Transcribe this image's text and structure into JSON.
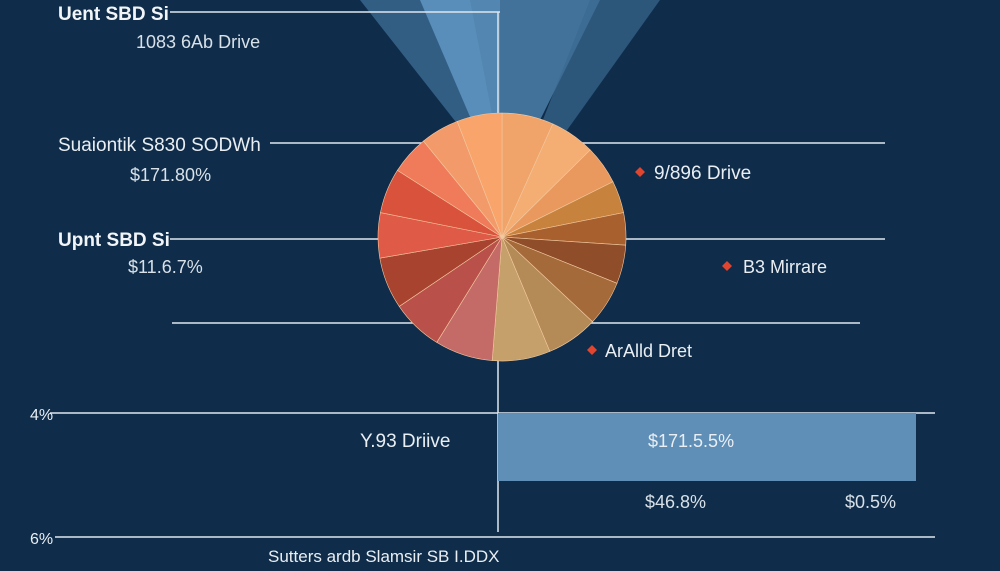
{
  "chart_data": [
    {
      "type": "pie",
      "title": "",
      "slices": [
        {
          "name": "slice-1",
          "value": 8,
          "color": "#f0a46a"
        },
        {
          "name": "slice-2",
          "value": 7,
          "color": "#f4ad72"
        },
        {
          "name": "slice-3",
          "value": 6,
          "color": "#e9995e"
        },
        {
          "name": "slice-4",
          "value": 5,
          "color": "#c7833d"
        },
        {
          "name": "slice-5",
          "value": 5,
          "color": "#a8602f"
        },
        {
          "name": "slice-6",
          "value": 6,
          "color": "#8f4d2a"
        },
        {
          "name": "slice-7",
          "value": 7,
          "color": "#a46a3a"
        },
        {
          "name": "slice-8",
          "value": 8,
          "color": "#b48a56"
        },
        {
          "name": "slice-9",
          "value": 9,
          "color": "#c5a06a"
        },
        {
          "name": "slice-10",
          "value": 9,
          "color": "#c56b67"
        },
        {
          "name": "slice-11",
          "value": 8,
          "color": "#b9514a"
        },
        {
          "name": "slice-12",
          "value": 8,
          "color": "#a8432f"
        },
        {
          "name": "slice-13",
          "value": 7,
          "color": "#e05a48"
        },
        {
          "name": "slice-14",
          "value": 7,
          "color": "#d9523c"
        },
        {
          "name": "slice-15",
          "value": 6,
          "color": "#f07b5a"
        },
        {
          "name": "slice-16",
          "value": 6,
          "color": "#f39a6a"
        },
        {
          "name": "slice-17",
          "value": 7,
          "color": "#f8a46a"
        }
      ],
      "left_labels": [
        {
          "title": "Uent SBD Si",
          "value": "1083 6Ab Drive"
        },
        {
          "title": "Suaiontik S830 SODWh",
          "value": "$171.80%"
        },
        {
          "title": "Upnt SBD Si",
          "value": "$11.6.7%"
        }
      ],
      "right_labels": [
        {
          "text": "9/896 Drive",
          "marker_color": "#e0452f"
        },
        {
          "text": "B3 Mirrare",
          "marker_color": "#e0452f"
        },
        {
          "text": "ArAlld Dret",
          "marker_color": "#e0452f"
        }
      ]
    },
    {
      "type": "bar",
      "orientation": "horizontal",
      "categories": [
        "Y.93 Driive"
      ],
      "series": [
        {
          "name": "bar",
          "values": [
            52
          ],
          "color": "#5f8fb6"
        }
      ],
      "xlim": [
        0,
        100
      ],
      "bar_label": "$171.5.5%",
      "y_ticks": [
        "4%",
        "6%"
      ],
      "under_labels": [
        "$46.8%",
        "$0.5%"
      ],
      "footer": "Sutters ardb Slamsir SB I.DDX"
    }
  ]
}
